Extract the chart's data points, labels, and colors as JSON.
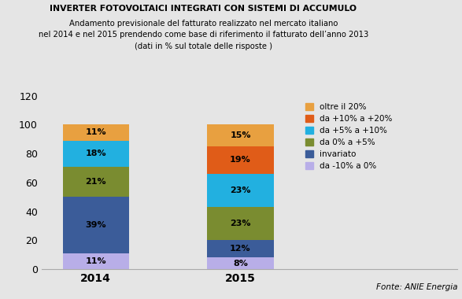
{
  "title_line1": "INVERTER FOTOVOLTAICI INTEGRATI CON SISTEMI DI ACCUMULO",
  "title_line2": "Andamento previsionale del fatturato realizzato nel mercato italiano\nnel 2014 e nel 2015 prendendo come base di riferimento il fatturato dell’anno 2013\n(dati in % sul totale delle risposte )",
  "categories": [
    "2014",
    "2015"
  ],
  "segments": [
    {
      "label": "da -10% a 0%",
      "values": [
        11,
        8
      ],
      "color": "#b8aee8"
    },
    {
      "label": "invariato",
      "values": [
        39,
        12
      ],
      "color": "#3b5c99"
    },
    {
      "label": "da 0% a +5%",
      "values": [
        21,
        23
      ],
      "color": "#7a8c30"
    },
    {
      "label": "da +5% a +10%",
      "values": [
        18,
        23
      ],
      "color": "#22b0e0"
    },
    {
      "label": "da +10% a +20%",
      "values": [
        0,
        19
      ],
      "color": "#e05c18"
    },
    {
      "label": "oltre il 20%",
      "values": [
        11,
        15
      ],
      "color": "#e8a040"
    }
  ],
  "ylim": [
    0,
    120
  ],
  "yticks": [
    0,
    20,
    40,
    60,
    80,
    100,
    120
  ],
  "background_color": "#e5e5e5",
  "bar_width": 0.55,
  "fonte": "Fonte: ANIE Energia",
  "legend_order": [
    5,
    4,
    3,
    2,
    1,
    0
  ],
  "label_fontsize": 8,
  "x_positions": [
    1.0,
    2.2
  ]
}
